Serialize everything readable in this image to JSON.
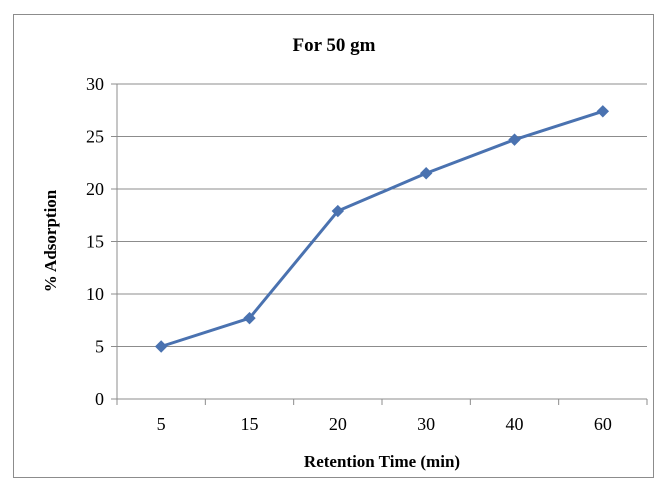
{
  "chart_data": {
    "type": "line",
    "title": "For 50 gm",
    "xlabel": "Retention Time (min)",
    "ylabel": "% Adsorption",
    "categories": [
      "5",
      "15",
      "20",
      "30",
      "40",
      "60"
    ],
    "series": [
      {
        "values": [
          5,
          7.7,
          17.9,
          21.5,
          24.7,
          27.4
        ]
      }
    ],
    "ylim": [
      0,
      30
    ],
    "yticks": [
      "0",
      "5",
      "10",
      "15",
      "20",
      "25",
      "30"
    ],
    "grid": "horizontal",
    "legend": "none",
    "colors": {
      "line": "#4a72b0",
      "marker": "#4a72b0",
      "grid": "#8c8c8c",
      "axis": "#8c8c8c"
    }
  }
}
